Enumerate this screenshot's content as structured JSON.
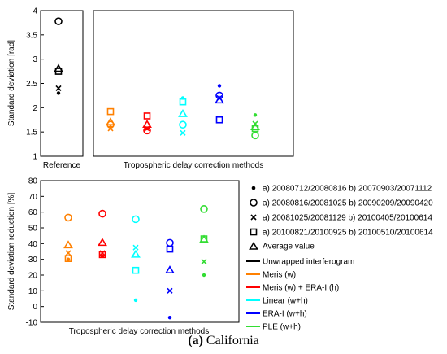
{
  "caption": {
    "label": "(a)",
    "text": "California"
  },
  "colors": {
    "unwrapped": "#000000",
    "meris": "#ff8000",
    "meris_era": "#ff0000",
    "linear": "#00ffff",
    "erai": "#0000ff",
    "ple": "#33dd33"
  },
  "legend": {
    "markers": [
      {
        "symbol": "dot",
        "text": "a) 20080712/20080816 b) 20070903/20071112"
      },
      {
        "symbol": "circle",
        "text": "a) 20080816/20081025 b) 20090209/20090420"
      },
      {
        "symbol": "cross",
        "text": "a) 20081025/20081129 b) 20100405/20100614"
      },
      {
        "symbol": "square",
        "text": "a) 20100821/20100925 b) 20100510/20100614"
      },
      {
        "symbol": "triangle",
        "text": "Average value"
      }
    ],
    "methods": [
      {
        "key": "unwrapped",
        "text": "Unwrapped interferogram"
      },
      {
        "key": "meris",
        "text": "Meris (w)"
      },
      {
        "key": "meris_era",
        "text": "Meris (w) + ERA-I (h)"
      },
      {
        "key": "linear",
        "text": "Linear (w+h)"
      },
      {
        "key": "erai",
        "text": "ERA-I (w+h)"
      },
      {
        "key": "ple",
        "text": "PLE (w+h)"
      }
    ]
  },
  "chart_data": [
    {
      "id": "reference",
      "type": "scatter",
      "ylabel": "Standard deviation [rad]",
      "xlabel": "Reference",
      "ylim": [
        1,
        4
      ],
      "yticks": [
        "1",
        "1.5",
        "2",
        "2.5",
        "3",
        "3.5",
        "4"
      ],
      "grid": false,
      "series": [
        {
          "method": "unwrapped",
          "dot": 2.3,
          "circle": 3.78,
          "cross": 2.4,
          "square": 2.75,
          "triangle": 2.8
        }
      ]
    },
    {
      "id": "corrected",
      "type": "scatter",
      "xlabel": "Tropospheric delay correction methods",
      "ylim": [
        1,
        4
      ],
      "grid": false,
      "series": [
        {
          "method": "meris",
          "dot": 1.6,
          "circle": 1.65,
          "cross": 1.57,
          "square": 1.92,
          "triangle": 1.7
        },
        {
          "method": "meris_era",
          "dot": 1.57,
          "circle": 1.53,
          "cross": 1.57,
          "square": 1.83,
          "triangle": 1.65
        },
        {
          "method": "linear",
          "dot": 2.2,
          "circle": 1.65,
          "cross": 1.48,
          "square": 2.12,
          "triangle": 1.87
        },
        {
          "method": "erai",
          "dot": 2.45,
          "circle": 2.25,
          "cross": 2.2,
          "square": 1.75,
          "triangle": 2.15
        },
        {
          "method": "ple",
          "dot": 1.85,
          "circle": 1.43,
          "cross": 1.67,
          "square": 1.57,
          "triangle": 1.6
        }
      ]
    },
    {
      "id": "reduction",
      "type": "scatter",
      "ylabel": "Standard deviation reduction [%]",
      "xlabel": "Tropospheric delay correction methods",
      "ylim": [
        -10,
        80
      ],
      "yticks": [
        "-10",
        "0",
        "10",
        "20",
        "30",
        "40",
        "50",
        "60",
        "70",
        "80"
      ],
      "grid": false,
      "series": [
        {
          "method": "meris",
          "dot": 30,
          "circle": 56.5,
          "cross": 34,
          "square": 30.5,
          "triangle": 39
        },
        {
          "method": "meris_era",
          "dot": 32,
          "circle": 59,
          "cross": 34,
          "square": 33,
          "triangle": 40.5
        },
        {
          "method": "linear",
          "dot": 4,
          "circle": 55.5,
          "cross": 37.5,
          "square": 23,
          "triangle": 33
        },
        {
          "method": "erai",
          "dot": -7,
          "circle": 40.5,
          "cross": 10,
          "square": 36.5,
          "triangle": 23
        },
        {
          "method": "ple",
          "dot": 20,
          "circle": 62,
          "cross": 28.5,
          "square": 43,
          "triangle": 42.5
        }
      ]
    }
  ]
}
